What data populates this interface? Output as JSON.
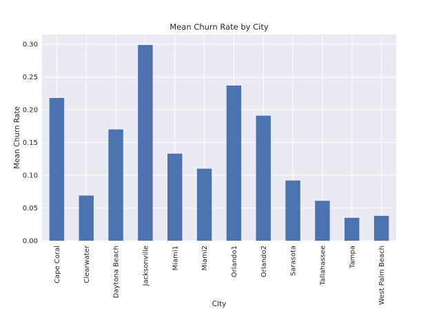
{
  "chart_data": {
    "type": "bar",
    "title": "Mean Churn Rate by City",
    "xlabel": "City",
    "ylabel": "Mean Churn Rate",
    "categories": [
      "Cape Coral",
      "Clearwater",
      "Daytona Beach",
      "Jacksonville",
      "Miami1",
      "Miami2",
      "Orlando1",
      "Orlando2",
      "Sarasota",
      "Tallahassee",
      "Tampa",
      "West Palm Beach"
    ],
    "values": [
      0.218,
      0.069,
      0.17,
      0.299,
      0.133,
      0.11,
      0.237,
      0.191,
      0.092,
      0.061,
      0.035,
      0.038
    ],
    "ylim": [
      0,
      0.315
    ],
    "yticks": [
      0.0,
      0.05,
      0.1,
      0.15,
      0.2,
      0.25,
      0.3
    ],
    "ytick_labels": [
      "0.00",
      "0.05",
      "0.10",
      "0.15",
      "0.20",
      "0.25",
      "0.30"
    ],
    "grid": true,
    "legend": "none",
    "colors": {
      "bar": "#4c72b0",
      "plot_bg": "#eaeaf2",
      "grid": "#ffffff"
    }
  }
}
